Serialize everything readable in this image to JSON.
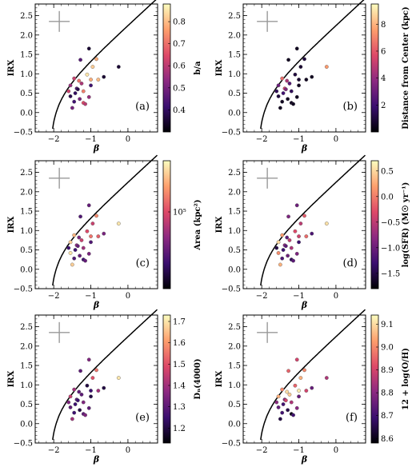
{
  "chart_data": [
    {
      "type": "scatter",
      "panel_label": "(a)",
      "xlabel": "β",
      "ylabel": "IRX",
      "xlim": [
        -2.5,
        0.8
      ],
      "ylim": [
        -0.5,
        2.8
      ],
      "xticks": [
        -2,
        -1,
        0
      ],
      "xtick_labels": [
        "−2",
        "−1",
        "0"
      ],
      "yticks": [
        -0.5,
        0.0,
        0.5,
        1.0,
        1.5,
        2.0,
        2.5
      ],
      "ytick_labels": [
        "−0.5",
        "0.0",
        "0.5",
        "1.0",
        "1.5",
        "2.0",
        "2.5"
      ],
      "colorbar": {
        "label": "b/a",
        "min": 0.3,
        "max": 0.88,
        "scale": "linear",
        "ticks": [
          0.4,
          0.5,
          0.6,
          0.7,
          0.8
        ],
        "tick_labels": [
          "0.4",
          "0.5",
          "0.6",
          "0.7",
          "0.8"
        ]
      },
      "points": [
        {
          "x": -1.05,
          "y": 1.65,
          "c": 0.35
        },
        {
          "x": -1.28,
          "y": 1.36,
          "c": 0.45
        },
        {
          "x": -0.85,
          "y": 1.38,
          "c": 0.78
        },
        {
          "x": -0.25,
          "y": 1.18,
          "c": 0.35
        },
        {
          "x": -0.95,
          "y": 1.18,
          "c": 0.82
        },
        {
          "x": -1.45,
          "y": 0.88,
          "c": 0.62
        },
        {
          "x": -1.32,
          "y": 0.82,
          "c": 0.7
        },
        {
          "x": -1.1,
          "y": 0.98,
          "c": 0.85
        },
        {
          "x": -1.0,
          "y": 0.85,
          "c": 0.78
        },
        {
          "x": -0.8,
          "y": 0.85,
          "c": 0.8
        },
        {
          "x": -0.65,
          "y": 0.92,
          "c": 0.35
        },
        {
          "x": -1.55,
          "y": 0.7,
          "c": 0.55
        },
        {
          "x": -1.38,
          "y": 0.62,
          "c": 0.45
        },
        {
          "x": -1.2,
          "y": 0.55,
          "c": 0.72
        },
        {
          "x": -1.42,
          "y": 0.5,
          "c": 0.4
        },
        {
          "x": -1.55,
          "y": 0.42,
          "c": 0.38
        },
        {
          "x": -1.3,
          "y": 0.35,
          "c": 0.5
        },
        {
          "x": -1.45,
          "y": 0.28,
          "c": 0.42
        },
        {
          "x": -1.2,
          "y": 0.25,
          "c": 0.65
        },
        {
          "x": -1.15,
          "y": 0.22,
          "c": 0.6
        },
        {
          "x": -1.05,
          "y": 0.4,
          "c": 0.55
        },
        {
          "x": -1.5,
          "y": 0.12,
          "c": 0.5
        },
        {
          "x": -1.35,
          "y": 0.6,
          "c": 0.38
        },
        {
          "x": -1.25,
          "y": 0.75,
          "c": 0.58
        },
        {
          "x": -1.0,
          "y": 0.7,
          "c": 0.42
        },
        {
          "x": -1.6,
          "y": 0.55,
          "c": 0.62
        }
      ]
    },
    {
      "type": "scatter",
      "panel_label": "(b)",
      "xlabel": "β",
      "ylabel": "IRX",
      "xlim": [
        -2.5,
        0.8
      ],
      "ylim": [
        -0.5,
        2.8
      ],
      "xticks": [
        -2,
        -1,
        0
      ],
      "xtick_labels": [
        "−2",
        "−1",
        "0"
      ],
      "yticks": [
        -0.5,
        0.0,
        0.5,
        1.0,
        1.5,
        2.0,
        2.5
      ],
      "ytick_labels": [
        "−0.5",
        "0.0",
        "0.5",
        "1.0",
        "1.5",
        "2.0",
        "2.5"
      ],
      "colorbar": {
        "label": "Distance from Center (kpc)",
        "min": 0.0,
        "max": 9.5,
        "scale": "linear",
        "ticks": [
          2,
          4,
          6,
          8
        ],
        "tick_labels": [
          "2",
          "4",
          "6",
          "8"
        ]
      },
      "points": [
        {
          "x": -1.05,
          "y": 1.65,
          "c": 0.5
        },
        {
          "x": -1.28,
          "y": 1.36,
          "c": 0.5
        },
        {
          "x": -0.85,
          "y": 1.38,
          "c": 1.0
        },
        {
          "x": -0.25,
          "y": 1.18,
          "c": 7.5
        },
        {
          "x": -0.95,
          "y": 1.18,
          "c": 0.8
        },
        {
          "x": -1.45,
          "y": 0.88,
          "c": 6.5
        },
        {
          "x": -1.32,
          "y": 0.82,
          "c": 4.5
        },
        {
          "x": -1.1,
          "y": 0.98,
          "c": 1.0
        },
        {
          "x": -1.0,
          "y": 0.85,
          "c": 0.8
        },
        {
          "x": -0.8,
          "y": 0.85,
          "c": 0.5
        },
        {
          "x": -0.65,
          "y": 0.92,
          "c": 0.5
        },
        {
          "x": -1.55,
          "y": 0.7,
          "c": 3.0
        },
        {
          "x": -1.38,
          "y": 0.62,
          "c": 5.5
        },
        {
          "x": -1.2,
          "y": 0.55,
          "c": 1.5
        },
        {
          "x": -1.42,
          "y": 0.5,
          "c": 2.0
        },
        {
          "x": -1.55,
          "y": 0.42,
          "c": 1.0
        },
        {
          "x": -1.3,
          "y": 0.35,
          "c": 0.5
        },
        {
          "x": -1.45,
          "y": 0.28,
          "c": 0.5
        },
        {
          "x": -1.2,
          "y": 0.25,
          "c": 0.5
        },
        {
          "x": -1.15,
          "y": 0.22,
          "c": 0.5
        },
        {
          "x": -1.05,
          "y": 0.4,
          "c": 0.5
        },
        {
          "x": -1.5,
          "y": 0.12,
          "c": 0.5
        },
        {
          "x": -1.35,
          "y": 0.6,
          "c": 3.5
        },
        {
          "x": -1.25,
          "y": 0.75,
          "c": 2.5
        },
        {
          "x": -1.0,
          "y": 0.7,
          "c": 0.5
        },
        {
          "x": -1.6,
          "y": 0.55,
          "c": 1.5
        }
      ]
    },
    {
      "type": "scatter",
      "panel_label": "(c)",
      "xlabel": "β",
      "ylabel": "IRX",
      "xlim": [
        -2.5,
        0.8
      ],
      "ylim": [
        -0.5,
        2.8
      ],
      "xticks": [
        -2,
        -1,
        0
      ],
      "xtick_labels": [
        "−2",
        "−1",
        "0"
      ],
      "yticks": [
        -0.5,
        0.0,
        0.5,
        1.0,
        1.5,
        2.0,
        2.5
      ],
      "ytick_labels": [
        "−0.5",
        "0.0",
        "0.5",
        "1.0",
        "1.5",
        "2.0",
        "2.5"
      ],
      "colorbar": {
        "label": "Area (kpc²)",
        "min": 0.0,
        "max": 1.0,
        "scale": "log",
        "ticks": [
          0.6
        ],
        "tick_labels": [
          "10⁵"
        ]
      },
      "points": [
        {
          "x": -1.05,
          "y": 1.65,
          "c": 0.3
        },
        {
          "x": -1.28,
          "y": 1.36,
          "c": 0.25
        },
        {
          "x": -0.85,
          "y": 1.38,
          "c": 0.75
        },
        {
          "x": -0.25,
          "y": 1.18,
          "c": 0.95
        },
        {
          "x": -0.95,
          "y": 1.18,
          "c": 0.55
        },
        {
          "x": -1.45,
          "y": 0.88,
          "c": 0.85
        },
        {
          "x": -1.32,
          "y": 0.82,
          "c": 0.35
        },
        {
          "x": -1.1,
          "y": 0.98,
          "c": 0.6
        },
        {
          "x": -1.0,
          "y": 0.85,
          "c": 0.7
        },
        {
          "x": -0.8,
          "y": 0.85,
          "c": 0.65
        },
        {
          "x": -0.65,
          "y": 0.92,
          "c": 0.35
        },
        {
          "x": -1.55,
          "y": 0.7,
          "c": 0.9
        },
        {
          "x": -1.38,
          "y": 0.62,
          "c": 0.4
        },
        {
          "x": -1.2,
          "y": 0.55,
          "c": 0.45
        },
        {
          "x": -1.42,
          "y": 0.5,
          "c": 0.2
        },
        {
          "x": -1.55,
          "y": 0.42,
          "c": 0.95
        },
        {
          "x": -1.3,
          "y": 0.35,
          "c": 0.3
        },
        {
          "x": -1.45,
          "y": 0.28,
          "c": 0.25
        },
        {
          "x": -1.2,
          "y": 0.25,
          "c": 0.2
        },
        {
          "x": -1.15,
          "y": 0.22,
          "c": 0.3
        },
        {
          "x": -1.05,
          "y": 0.4,
          "c": 0.35
        },
        {
          "x": -1.5,
          "y": 0.12,
          "c": 0.9
        },
        {
          "x": -1.35,
          "y": 0.6,
          "c": 0.3
        },
        {
          "x": -1.25,
          "y": 0.75,
          "c": 0.55
        },
        {
          "x": -1.0,
          "y": 0.7,
          "c": 0.25
        },
        {
          "x": -1.6,
          "y": 0.55,
          "c": 0.2
        }
      ]
    },
    {
      "type": "scatter",
      "panel_label": "(d)",
      "xlabel": "β",
      "ylabel": "IRX",
      "xlim": [
        -2.5,
        0.8
      ],
      "ylim": [
        -0.5,
        2.8
      ],
      "xticks": [
        -2,
        -1,
        0
      ],
      "xtick_labels": [
        "−2",
        "−1",
        "0"
      ],
      "yticks": [
        -0.5,
        0.0,
        0.5,
        1.0,
        1.5,
        2.0,
        2.5
      ],
      "ytick_labels": [
        "−0.5",
        "0.0",
        "0.5",
        "1.0",
        "1.5",
        "2.0",
        "2.5"
      ],
      "colorbar": {
        "label": "log(SFR) (M☉ yr⁻¹)",
        "min": -1.8,
        "max": 0.7,
        "scale": "linear",
        "ticks": [
          -1.5,
          -1.0,
          -0.5,
          0.0,
          0.5
        ],
        "tick_labels": [
          "−1.5",
          "−1.0",
          "−0.5",
          "0.0",
          "0.5"
        ]
      },
      "points": [
        {
          "x": -1.05,
          "y": 1.65,
          "c": -1.0
        },
        {
          "x": -1.28,
          "y": 1.36,
          "c": -0.9
        },
        {
          "x": -0.85,
          "y": 1.38,
          "c": -0.2
        },
        {
          "x": -0.25,
          "y": 1.18,
          "c": 0.55
        },
        {
          "x": -0.95,
          "y": 1.18,
          "c": -0.5
        },
        {
          "x": -1.45,
          "y": 0.88,
          "c": 0.2
        },
        {
          "x": -1.32,
          "y": 0.82,
          "c": -1.1
        },
        {
          "x": -1.1,
          "y": 0.98,
          "c": -0.3
        },
        {
          "x": -1.0,
          "y": 0.85,
          "c": -0.4
        },
        {
          "x": -0.8,
          "y": 0.85,
          "c": -0.1
        },
        {
          "x": -0.65,
          "y": 0.92,
          "c": -1.2
        },
        {
          "x": -1.55,
          "y": 0.7,
          "c": 0.5
        },
        {
          "x": -1.38,
          "y": 0.62,
          "c": -0.8
        },
        {
          "x": -1.2,
          "y": 0.55,
          "c": -0.6
        },
        {
          "x": -1.42,
          "y": 0.5,
          "c": -1.3
        },
        {
          "x": -1.55,
          "y": 0.42,
          "c": 0.1
        },
        {
          "x": -1.3,
          "y": 0.35,
          "c": -1.0
        },
        {
          "x": -1.45,
          "y": 0.28,
          "c": -1.2
        },
        {
          "x": -1.2,
          "y": 0.25,
          "c": -1.4
        },
        {
          "x": -1.15,
          "y": 0.22,
          "c": -1.1
        },
        {
          "x": -1.05,
          "y": 0.4,
          "c": -0.9
        },
        {
          "x": -1.5,
          "y": 0.12,
          "c": 0.3
        },
        {
          "x": -1.35,
          "y": 0.6,
          "c": -1.1
        },
        {
          "x": -1.25,
          "y": 0.75,
          "c": -0.5
        },
        {
          "x": -1.0,
          "y": 0.7,
          "c": -1.3
        },
        {
          "x": -1.6,
          "y": 0.55,
          "c": -1.5
        }
      ]
    },
    {
      "type": "scatter",
      "panel_label": "(e)",
      "xlabel": "β",
      "ylabel": "IRX",
      "xlim": [
        -2.5,
        0.8
      ],
      "ylim": [
        -0.5,
        2.8
      ],
      "xticks": [
        -2,
        -1,
        0
      ],
      "xtick_labels": [
        "−2",
        "−1",
        "0"
      ],
      "yticks": [
        -0.5,
        0.0,
        0.5,
        1.0,
        1.5,
        2.0,
        2.5
      ],
      "ytick_labels": [
        "−0.5",
        "0.0",
        "0.5",
        "1.0",
        "1.5",
        "2.0",
        "2.5"
      ],
      "colorbar": {
        "label": "Dₙ(4000)",
        "min": 1.13,
        "max": 1.73,
        "scale": "linear",
        "ticks": [
          1.2,
          1.3,
          1.4,
          1.5,
          1.6,
          1.7
        ],
        "tick_labels": [
          "1.2",
          "1.3",
          "1.4",
          "1.5",
          "1.6",
          "1.7"
        ]
      },
      "points": [
        {
          "x": -1.05,
          "y": 1.65,
          "c": 1.35
        },
        {
          "x": -1.28,
          "y": 1.36,
          "c": 1.3
        },
        {
          "x": -0.85,
          "y": 1.38,
          "c": 1.55
        },
        {
          "x": -0.25,
          "y": 1.18,
          "c": 1.7
        },
        {
          "x": -0.95,
          "y": 1.18,
          "c": 1.5
        },
        {
          "x": -1.45,
          "y": 0.88,
          "c": 1.4
        },
        {
          "x": -1.32,
          "y": 0.82,
          "c": 1.3
        },
        {
          "x": -1.1,
          "y": 0.98,
          "c": 1.2
        },
        {
          "x": -1.0,
          "y": 0.85,
          "c": 1.25
        },
        {
          "x": -0.8,
          "y": 0.85,
          "c": 1.4
        },
        {
          "x": -0.65,
          "y": 0.92,
          "c": 1.2
        },
        {
          "x": -1.55,
          "y": 0.7,
          "c": 1.45
        },
        {
          "x": -1.38,
          "y": 0.62,
          "c": 1.3
        },
        {
          "x": -1.2,
          "y": 0.55,
          "c": 1.35
        },
        {
          "x": -1.42,
          "y": 0.5,
          "c": 1.25
        },
        {
          "x": -1.55,
          "y": 0.42,
          "c": 1.3
        },
        {
          "x": -1.3,
          "y": 0.35,
          "c": 1.2
        },
        {
          "x": -1.45,
          "y": 0.28,
          "c": 1.25
        },
        {
          "x": -1.2,
          "y": 0.25,
          "c": 1.3
        },
        {
          "x": -1.15,
          "y": 0.22,
          "c": 1.35
        },
        {
          "x": -1.05,
          "y": 0.4,
          "c": 1.3
        },
        {
          "x": -1.5,
          "y": 0.12,
          "c": 1.4
        },
        {
          "x": -1.35,
          "y": 0.6,
          "c": 1.25
        },
        {
          "x": -1.25,
          "y": 0.75,
          "c": 1.3
        },
        {
          "x": -1.0,
          "y": 0.7,
          "c": 1.2
        },
        {
          "x": -1.6,
          "y": 0.55,
          "c": 1.35
        }
      ]
    },
    {
      "type": "scatter",
      "panel_label": "(f)",
      "xlabel": "β",
      "ylabel": "IRX",
      "xlim": [
        -2.5,
        0.8
      ],
      "ylim": [
        -0.5,
        2.8
      ],
      "xticks": [
        -2,
        -1,
        0
      ],
      "xtick_labels": [
        "−2",
        "−1",
        "0"
      ],
      "yticks": [
        -0.5,
        0.0,
        0.5,
        1.0,
        1.5,
        2.0,
        2.5
      ],
      "ytick_labels": [
        "−0.5",
        "0.0",
        "0.5",
        "1.0",
        "1.5",
        "2.0",
        "2.5"
      ],
      "colorbar": {
        "label": "12 + log(O/H)",
        "min": 8.58,
        "max": 9.14,
        "scale": "linear",
        "ticks": [
          8.6,
          8.7,
          8.8,
          8.9,
          9.0,
          9.1
        ],
        "tick_labels": [
          "8.6",
          "8.7",
          "8.8",
          "8.9",
          "9.0",
          "9.1"
        ]
      },
      "points": [
        {
          "x": -1.05,
          "y": 1.65,
          "c": 8.9
        },
        {
          "x": -1.28,
          "y": 1.36,
          "c": 8.95
        },
        {
          "x": -0.85,
          "y": 1.38,
          "c": 9.0
        },
        {
          "x": -0.25,
          "y": 1.18,
          "c": 8.85
        },
        {
          "x": -0.95,
          "y": 1.18,
          "c": 9.05
        },
        {
          "x": -1.45,
          "y": 0.88,
          "c": 9.0
        },
        {
          "x": -1.32,
          "y": 0.82,
          "c": 9.1
        },
        {
          "x": -1.1,
          "y": 0.98,
          "c": 8.95
        },
        {
          "x": -1.0,
          "y": 0.85,
          "c": 9.12
        },
        {
          "x": -0.8,
          "y": 0.85,
          "c": 8.9
        },
        {
          "x": -0.65,
          "y": 0.92,
          "c": 8.75
        },
        {
          "x": -1.55,
          "y": 0.7,
          "c": 9.05
        },
        {
          "x": -1.38,
          "y": 0.62,
          "c": 8.8
        },
        {
          "x": -1.2,
          "y": 0.55,
          "c": 8.85
        },
        {
          "x": -1.42,
          "y": 0.5,
          "c": 8.7
        },
        {
          "x": -1.55,
          "y": 0.42,
          "c": 8.75
        },
        {
          "x": -1.3,
          "y": 0.35,
          "c": 8.65
        },
        {
          "x": -1.45,
          "y": 0.28,
          "c": 8.7
        },
        {
          "x": -1.2,
          "y": 0.25,
          "c": 8.6
        },
        {
          "x": -1.15,
          "y": 0.22,
          "c": 8.7
        },
        {
          "x": -1.05,
          "y": 0.4,
          "c": 8.8
        },
        {
          "x": -1.5,
          "y": 0.12,
          "c": 8.65
        },
        {
          "x": -1.35,
          "y": 0.6,
          "c": 8.9
        },
        {
          "x": -1.25,
          "y": 0.75,
          "c": 9.08
        },
        {
          "x": -1.0,
          "y": 0.7,
          "c": 8.75
        },
        {
          "x": -1.6,
          "y": 0.55,
          "c": 8.8
        }
      ]
    }
  ],
  "colors": {
    "colormap": [
      "#000004",
      "#3b0f70",
      "#8c2981",
      "#de4968",
      "#fe9f6d",
      "#fcfdbf"
    ],
    "curve": "#000000",
    "error_cross": "#999999",
    "marker_edge": "#555555"
  }
}
